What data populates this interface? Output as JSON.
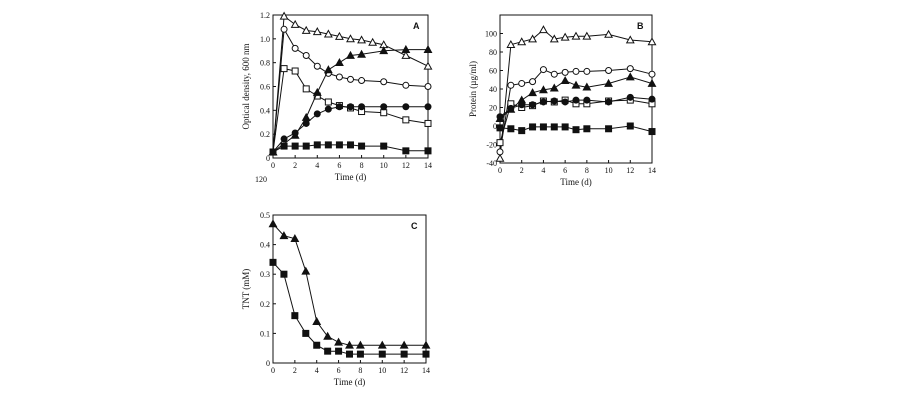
{
  "chart_data": [
    {
      "type": "line",
      "panel_label": "A",
      "xlabel": "Time (d)",
      "ylabel": "Optical density, 600 nm",
      "xlim": [
        0,
        14
      ],
      "ylim": [
        0,
        1.2
      ],
      "xticks": [
        "0",
        "2",
        "4",
        "6",
        "8",
        "10",
        "12",
        "14"
      ],
      "yticks": [
        "0",
        "0.2",
        "0.4",
        "0.6",
        "0.8",
        "1.0",
        "1.2"
      ],
      "stray_label": "120",
      "series": [
        {
          "marker": "open-triangle",
          "x": [
            0,
            1,
            2,
            3,
            4,
            5,
            6,
            7,
            8,
            9,
            10,
            12,
            14
          ],
          "y": [
            0.05,
            1.19,
            1.12,
            1.07,
            1.06,
            1.04,
            1.02,
            1.0,
            0.99,
            0.97,
            0.95,
            0.86,
            0.77
          ]
        },
        {
          "marker": "open-circle",
          "x": [
            0,
            1,
            2,
            3,
            4,
            5,
            6,
            7,
            8,
            10,
            12,
            14
          ],
          "y": [
            0.05,
            1.08,
            0.92,
            0.86,
            0.77,
            0.71,
            0.68,
            0.66,
            0.65,
            0.64,
            0.61,
            0.6
          ]
        },
        {
          "marker": "open-square",
          "x": [
            0,
            1,
            2,
            3,
            4,
            5,
            6,
            7,
            8,
            10,
            12,
            14
          ],
          "y": [
            0.05,
            0.75,
            0.73,
            0.58,
            0.52,
            0.47,
            0.44,
            0.42,
            0.39,
            0.38,
            0.32,
            0.29
          ]
        },
        {
          "marker": "filled-triangle",
          "x": [
            0,
            2,
            3,
            4,
            5,
            6,
            7,
            8,
            10,
            12,
            14
          ],
          "y": [
            0.05,
            0.19,
            0.34,
            0.55,
            0.74,
            0.8,
            0.86,
            0.87,
            0.9,
            0.91,
            0.91
          ]
        },
        {
          "marker": "filled-circle",
          "x": [
            0,
            1,
            2,
            3,
            4,
            5,
            6,
            7,
            8,
            10,
            12,
            14
          ],
          "y": [
            0.05,
            0.16,
            0.21,
            0.29,
            0.37,
            0.41,
            0.43,
            0.43,
            0.43,
            0.43,
            0.43,
            0.43
          ]
        },
        {
          "marker": "filled-square",
          "x": [
            0,
            1,
            2,
            3,
            4,
            5,
            6,
            7,
            8,
            10,
            12,
            14
          ],
          "y": [
            0.05,
            0.1,
            0.1,
            0.1,
            0.11,
            0.11,
            0.11,
            0.11,
            0.1,
            0.1,
            0.06,
            0.06
          ]
        }
      ]
    },
    {
      "type": "line",
      "panel_label": "B",
      "xlabel": "Time (d)",
      "ylabel": "Protein (µg/ml)",
      "xlim": [
        0,
        14
      ],
      "ylim": [
        -40,
        120
      ],
      "xticks": [
        "0",
        "2",
        "4",
        "6",
        "8",
        "10",
        "12",
        "14"
      ],
      "yticks": [
        "-40",
        "-20",
        "0",
        "20",
        "40",
        "60",
        "80",
        "100"
      ],
      "series": [
        {
          "marker": "open-triangle",
          "x": [
            0,
            1,
            2,
            3,
            4,
            5,
            6,
            7,
            8,
            10,
            12,
            14
          ],
          "y": [
            -35,
            88,
            91,
            94,
            104,
            94,
            96,
            97,
            97,
            99,
            93,
            91
          ]
        },
        {
          "marker": "open-circle",
          "x": [
            0,
            1,
            2,
            3,
            4,
            5,
            6,
            7,
            8,
            10,
            12,
            14
          ],
          "y": [
            -28,
            44,
            46,
            48,
            61,
            56,
            58,
            59,
            59,
            60,
            62,
            56
          ]
        },
        {
          "marker": "filled-triangle",
          "x": [
            0,
            1,
            2,
            3,
            4,
            5,
            6,
            7,
            8,
            10,
            12,
            14
          ],
          "y": [
            8,
            18,
            28,
            36,
            39,
            41,
            49,
            44,
            42,
            46,
            53,
            46
          ]
        },
        {
          "marker": "open-square",
          "x": [
            0,
            1,
            2,
            3,
            4,
            5,
            6,
            7,
            8,
            10,
            12,
            14
          ],
          "y": [
            -18,
            24,
            20,
            22,
            27,
            26,
            28,
            24,
            24,
            27,
            28,
            24
          ]
        },
        {
          "marker": "filled-circle",
          "x": [
            0,
            1,
            2,
            3,
            4,
            5,
            6,
            7,
            8,
            10,
            12,
            14
          ],
          "y": [
            10,
            19,
            23,
            23,
            26,
            27,
            26,
            28,
            28,
            26,
            31,
            29
          ]
        },
        {
          "marker": "filled-square",
          "x": [
            0,
            1,
            2,
            3,
            4,
            5,
            6,
            7,
            8,
            10,
            12,
            14
          ],
          "y": [
            -2,
            -3,
            -5,
            -1,
            -1,
            -1,
            -1,
            -4,
            -3,
            -3,
            0,
            -6
          ]
        }
      ]
    },
    {
      "type": "line",
      "panel_label": "C",
      "xlabel": "Time (d)",
      "ylabel": "TNT (mM)",
      "xlim": [
        0,
        14
      ],
      "ylim": [
        0,
        0.5
      ],
      "xticks": [
        "0",
        "2",
        "4",
        "6",
        "8",
        "10",
        "12",
        "14"
      ],
      "yticks": [
        "0",
        "0.1",
        "0.2",
        "0.3",
        "0.4",
        "0.5"
      ],
      "series": [
        {
          "marker": "filled-triangle",
          "x": [
            0,
            1,
            2,
            3,
            4,
            5,
            6,
            7,
            8,
            10,
            12,
            14
          ],
          "y": [
            0.47,
            0.43,
            0.42,
            0.31,
            0.14,
            0.09,
            0.07,
            0.06,
            0.06,
            0.06,
            0.06,
            0.06
          ]
        },
        {
          "marker": "filled-square",
          "x": [
            0,
            1,
            2,
            3,
            4,
            5,
            6,
            7,
            8,
            10,
            12,
            14
          ],
          "y": [
            0.34,
            0.3,
            0.16,
            0.1,
            0.06,
            0.04,
            0.04,
            0.03,
            0.03,
            0.03,
            0.03,
            0.03
          ]
        }
      ]
    }
  ]
}
